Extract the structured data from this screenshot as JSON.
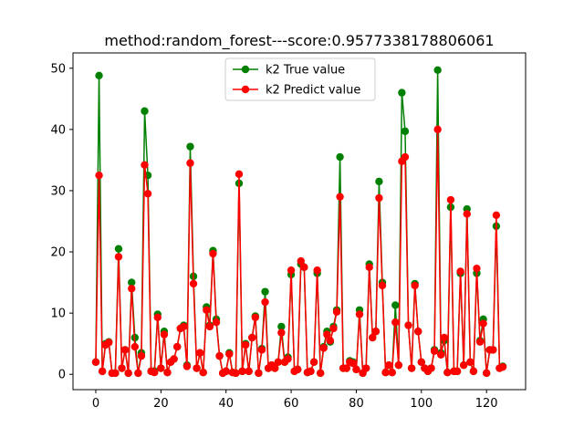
{
  "chart_data": {
    "type": "line",
    "title": "method:random_forest---score:0.9577338178806061",
    "xlabel": "",
    "ylabel": "",
    "xlim": [
      -7,
      132
    ],
    "ylim": [
      -2.5,
      52.5
    ],
    "xticks": [
      0,
      20,
      40,
      60,
      80,
      100,
      120
    ],
    "yticks": [
      0,
      10,
      20,
      30,
      40,
      50
    ],
    "grid": false,
    "legend_position": "upper center",
    "x": [
      0,
      1,
      2,
      3,
      4,
      5,
      6,
      7,
      8,
      9,
      10,
      11,
      12,
      13,
      14,
      15,
      16,
      17,
      18,
      19,
      20,
      21,
      22,
      23,
      24,
      25,
      26,
      27,
      28,
      29,
      30,
      31,
      32,
      33,
      34,
      35,
      36,
      37,
      38,
      39,
      40,
      41,
      42,
      43,
      44,
      45,
      46,
      47,
      48,
      49,
      50,
      51,
      52,
      53,
      54,
      55,
      56,
      57,
      58,
      59,
      60,
      61,
      62,
      63,
      64,
      65,
      66,
      67,
      68,
      69,
      70,
      71,
      72,
      73,
      74,
      75,
      76,
      77,
      78,
      79,
      80,
      81,
      82,
      83,
      84,
      85,
      86,
      87,
      88,
      89,
      90,
      91,
      92,
      93,
      94,
      95,
      96,
      97,
      98,
      99,
      100,
      101,
      102,
      103,
      104,
      105,
      106,
      107,
      108,
      109,
      110,
      111,
      112,
      113,
      114,
      115,
      116,
      117,
      118,
      119,
      120,
      121,
      122,
      123,
      124,
      125
    ],
    "series": [
      {
        "name": "k2 True value",
        "color": "#008000",
        "values": [
          2,
          48.8,
          0.5,
          5,
          5.3,
          0.2,
          0.2,
          20.5,
          1,
          4,
          0.2,
          15,
          6,
          0.2,
          3.5,
          43,
          32.5,
          0.5,
          0.5,
          9.8,
          1,
          7,
          0.3,
          2,
          2.5,
          4.5,
          7.5,
          8,
          1.5,
          37.2,
          16,
          1,
          3.5,
          0.3,
          11,
          8,
          20.2,
          9,
          3,
          0.2,
          0.5,
          3.5,
          0.3,
          0.2,
          31.2,
          0.5,
          5,
          0.5,
          6,
          9.5,
          0.2,
          4.2,
          13.5,
          1,
          1.5,
          1,
          2,
          7.8,
          2,
          2.8,
          16.3,
          0.5,
          0.8,
          18,
          17.5,
          0.3,
          0.5,
          2,
          16.5,
          0.2,
          4.5,
          7,
          5.3,
          7.8,
          10.5,
          35.5,
          1,
          1,
          2.2,
          2,
          0.8,
          10.5,
          0.2,
          1,
          18,
          6,
          7,
          31.5,
          15,
          0.3,
          1.5,
          0.3,
          11.3,
          1.5,
          46,
          39.7,
          8,
          1,
          14.8,
          7,
          2,
          1,
          0.5,
          1,
          4,
          49.7,
          3.5,
          5.5,
          0.3,
          27.3,
          0.5,
          0.5,
          16.5,
          1.5,
          27,
          2,
          0.5,
          16.5,
          5.5,
          9,
          0.2,
          4,
          4,
          24.2,
          1,
          1.3
        ]
      },
      {
        "name": "k2 Predict value",
        "color": "#ff0000",
        "values": [
          2,
          32.5,
          0.5,
          4.8,
          5.2,
          0.2,
          0.2,
          19.2,
          1,
          4,
          0.2,
          14,
          4.5,
          0.2,
          3,
          34.2,
          29.5,
          0.5,
          0.3,
          9.3,
          1,
          6.5,
          0.3,
          2,
          2.5,
          4.5,
          7.5,
          7.8,
          1.3,
          34.5,
          14.8,
          1,
          3.5,
          0.3,
          10.5,
          7.8,
          19.7,
          8.5,
          3,
          0.2,
          0.5,
          3.3,
          0.3,
          0.2,
          32.7,
          0.5,
          4.8,
          0.5,
          6,
          9.3,
          0.2,
          4,
          11.8,
          1,
          1.5,
          1,
          2,
          6.8,
          2,
          2.5,
          17,
          0.5,
          0.8,
          18.5,
          17.5,
          0.3,
          0.5,
          2,
          17,
          0.2,
          4.3,
          6.5,
          5.5,
          7.5,
          10.2,
          29,
          1,
          1,
          2,
          1.8,
          0.8,
          9.8,
          0.2,
          1,
          17.5,
          6,
          7,
          28.8,
          14.5,
          0.3,
          1.5,
          0.3,
          8.5,
          1.5,
          34.8,
          35.5,
          8,
          1,
          14.5,
          7,
          2,
          1,
          0.5,
          1,
          3.8,
          40,
          3.2,
          6,
          0.3,
          28.5,
          0.5,
          0.5,
          16.8,
          1.5,
          26.2,
          2,
          0.5,
          17.3,
          5.3,
          8.3,
          0.2,
          4,
          4,
          26,
          1,
          1.2
        ]
      }
    ]
  }
}
